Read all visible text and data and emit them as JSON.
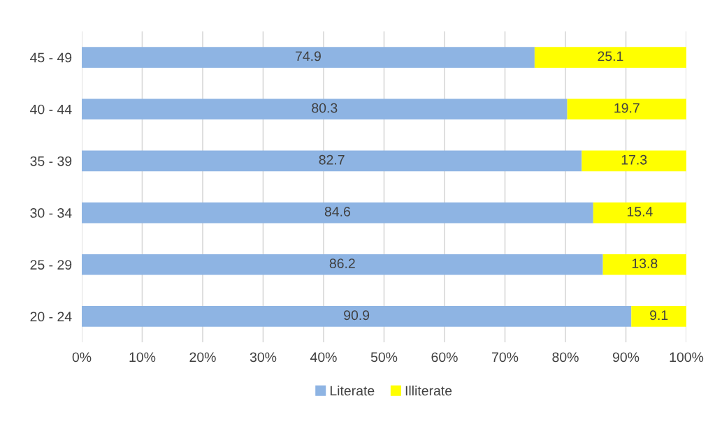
{
  "chart_data": {
    "type": "bar",
    "orientation": "horizontal",
    "stacked": true,
    "categories": [
      "45 - 49",
      "40 - 44",
      "35 - 39",
      "30 - 34",
      "25 - 29",
      "20 - 24"
    ],
    "series": [
      {
        "name": "Literate",
        "color": "#8eb4e3",
        "values": [
          74.9,
          80.3,
          82.7,
          84.6,
          86.2,
          90.9
        ]
      },
      {
        "name": "Illiterate",
        "color": "#ffff00",
        "values": [
          25.1,
          19.7,
          17.3,
          15.4,
          13.8,
          9.1
        ]
      }
    ],
    "xlim": [
      0,
      100
    ],
    "xticks": [
      {
        "value": 0,
        "label": "0%"
      },
      {
        "value": 10,
        "label": "10%"
      },
      {
        "value": 20,
        "label": "20%"
      },
      {
        "value": 30,
        "label": "30%"
      },
      {
        "value": 40,
        "label": "40%"
      },
      {
        "value": 50,
        "label": "50%"
      },
      {
        "value": 60,
        "label": "60%"
      },
      {
        "value": 70,
        "label": "70%"
      },
      {
        "value": 80,
        "label": "80%"
      },
      {
        "value": 90,
        "label": "90%"
      },
      {
        "value": 100,
        "label": "100%"
      }
    ],
    "grid": "x",
    "legend": "bottom",
    "data_labels": true
  }
}
